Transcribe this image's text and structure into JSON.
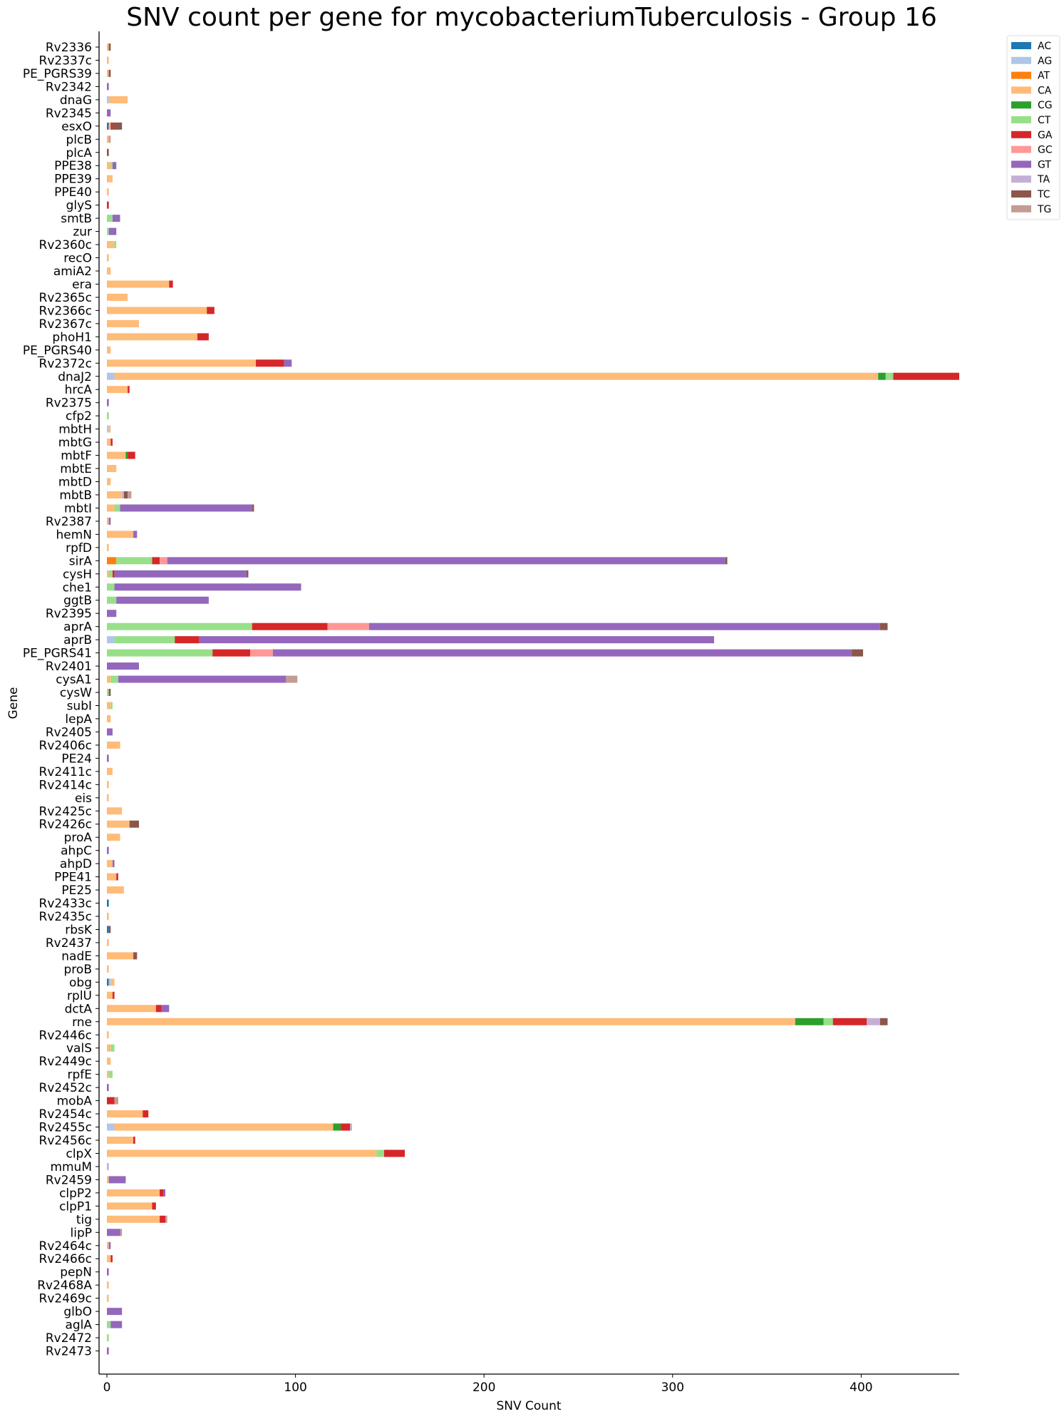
{
  "chart_data": {
    "type": "bar",
    "orientation": "horizontal",
    "stacked": true,
    "title": "SNV count per gene for mycobacteriumTuberculosis - Group 16",
    "xlabel": "SNV Count",
    "ylabel": "Gene",
    "xlim": [
      0,
      452
    ],
    "xticks": [
      0,
      100,
      200,
      300,
      400
    ],
    "grid": false,
    "legend_position": "top-right, outside plot",
    "series_names": [
      "AC",
      "AG",
      "AT",
      "CA",
      "CG",
      "CT",
      "GA",
      "GC",
      "GT",
      "TA",
      "TC",
      "TG"
    ],
    "series_colors": [
      "#1f77b4",
      "#aec7e8",
      "#ff7f0e",
      "#ffbb78",
      "#2ca02c",
      "#98df8a",
      "#d62728",
      "#ff9896",
      "#9467bd",
      "#c5b0d5",
      "#8c564b",
      "#c49c94"
    ],
    "genes": [
      {
        "name": "Rv2336",
        "v": {
          "CA": 1,
          "TC": 1
        }
      },
      {
        "name": "Rv2337c",
        "v": {
          "CA": 1
        }
      },
      {
        "name": "PE_PGRS39",
        "v": {
          "CA": 1,
          "TC": 1
        }
      },
      {
        "name": "Rv2342",
        "v": {
          "GT": 1
        }
      },
      {
        "name": "dnaG",
        "v": {
          "AG": 1,
          "CA": 10
        }
      },
      {
        "name": "Rv2345",
        "v": {
          "GT": 2
        }
      },
      {
        "name": "esxO",
        "v": {
          "AC": 1,
          "CA": 1,
          "GA": 1,
          "TC": 5
        }
      },
      {
        "name": "plcB",
        "v": {
          "CA": 1,
          "TG": 1
        }
      },
      {
        "name": "plcA",
        "v": {
          "TC": 1
        }
      },
      {
        "name": "PPE38",
        "v": {
          "CA": 2,
          "CT": 1,
          "GT": 2
        }
      },
      {
        "name": "PPE39",
        "v": {
          "CA": 3
        }
      },
      {
        "name": "PPE40",
        "v": {
          "CA": 1
        }
      },
      {
        "name": "glyS",
        "v": {
          "GA": 1
        }
      },
      {
        "name": "smtB",
        "v": {
          "CT": 3,
          "GT": 4
        }
      },
      {
        "name": "zur",
        "v": {
          "CT": 1,
          "GT": 4
        }
      },
      {
        "name": "Rv2360c",
        "v": {
          "CA": 4,
          "CT": 1
        }
      },
      {
        "name": "recO",
        "v": {
          "CA": 1
        }
      },
      {
        "name": "amiA2",
        "v": {
          "CA": 2
        }
      },
      {
        "name": "era",
        "v": {
          "CA": 33,
          "GA": 2
        }
      },
      {
        "name": "Rv2365c",
        "v": {
          "CA": 11
        }
      },
      {
        "name": "Rv2366c",
        "v": {
          "CA": 53,
          "GA": 4
        }
      },
      {
        "name": "Rv2367c",
        "v": {
          "CA": 17
        }
      },
      {
        "name": "phoH1",
        "v": {
          "CA": 48,
          "GA": 6
        }
      },
      {
        "name": "PE_PGRS40",
        "v": {
          "CA": 2
        }
      },
      {
        "name": "Rv2372c",
        "v": {
          "CA": 79,
          "GA": 15,
          "GT": 4
        }
      },
      {
        "name": "dnaJ2",
        "v": {
          "AG": 4,
          "CA": 405,
          "CG": 4,
          "CT": 4,
          "GA": 35
        }
      },
      {
        "name": "hrcA",
        "v": {
          "CA": 11,
          "GA": 1
        }
      },
      {
        "name": "Rv2375",
        "v": {
          "GT": 1
        }
      },
      {
        "name": "cfp2",
        "v": {
          "CT": 1
        }
      },
      {
        "name": "mbtH",
        "v": {
          "AG": 1,
          "CA": 1
        }
      },
      {
        "name": "mbtG",
        "v": {
          "CA": 2,
          "GA": 1
        }
      },
      {
        "name": "mbtF",
        "v": {
          "CA": 10,
          "CG": 1,
          "GA": 4
        }
      },
      {
        "name": "mbtE",
        "v": {
          "CA": 5
        }
      },
      {
        "name": "mbtD",
        "v": {
          "CA": 2
        }
      },
      {
        "name": "mbtB",
        "v": {
          "CA": 8,
          "TA": 1,
          "TC": 2,
          "TG": 2
        }
      },
      {
        "name": "mbtI",
        "v": {
          "CA": 4,
          "CT": 3,
          "GT": 70,
          "TC": 1
        }
      },
      {
        "name": "Rv2387",
        "v": {
          "CA": 1,
          "GT": 1
        }
      },
      {
        "name": "hemN",
        "v": {
          "CA": 14,
          "GT": 2
        }
      },
      {
        "name": "rpfD",
        "v": {
          "CA": 1
        }
      },
      {
        "name": "sirA",
        "v": {
          "AT": 5,
          "CT": 19,
          "GA": 4,
          "GC": 4,
          "GT": 296,
          "TC": 1
        }
      },
      {
        "name": "cysH",
        "v": {
          "CA": 1,
          "CT": 2,
          "GA": 1,
          "TC": 1,
          "GT": 70
        }
      },
      {
        "name": "che1",
        "v": {
          "CT": 4,
          "GT": 99
        }
      },
      {
        "name": "ggtB",
        "v": {
          "CT": 5,
          "GT": 49
        }
      },
      {
        "name": "Rv2395",
        "v": {
          "GT": 5
        }
      },
      {
        "name": "aprA",
        "v": {
          "CT": 77,
          "GA": 40,
          "GC": 22,
          "GT": 271,
          "TC": 4
        }
      },
      {
        "name": "aprB",
        "v": {
          "AG": 4,
          "CT": 32,
          "GA": 13,
          "GT": 273
        }
      },
      {
        "name": "PE_PGRS41",
        "v": {
          "CT": 56,
          "GA": 20,
          "GC": 12,
          "GT": 307,
          "TC": 6
        }
      },
      {
        "name": "Rv2401",
        "v": {
          "GT": 17
        }
      },
      {
        "name": "cysA1",
        "v": {
          "CA": 2,
          "TG": 6,
          "CT": 4,
          "GT": 89
        }
      },
      {
        "name": "cysW",
        "v": {
          "CT": 1,
          "TC": 1
        }
      },
      {
        "name": "subI",
        "v": {
          "CA": 2,
          "CT": 1
        }
      },
      {
        "name": "lepA",
        "v": {
          "CA": 2
        }
      },
      {
        "name": "Rv2405",
        "v": {
          "GT": 3
        }
      },
      {
        "name": "Rv2406c",
        "v": {
          "CA": 7
        }
      },
      {
        "name": "PE24",
        "v": {
          "GT": 1
        }
      },
      {
        "name": "Rv2411c",
        "v": {
          "CA": 3
        }
      },
      {
        "name": "Rv2414c",
        "v": {
          "CA": 1
        }
      },
      {
        "name": "eis",
        "v": {
          "CA": 1
        }
      },
      {
        "name": "Rv2425c",
        "v": {
          "CA": 8
        }
      },
      {
        "name": "Rv2426c",
        "v": {
          "CA": 12,
          "TC": 5
        }
      },
      {
        "name": "proA",
        "v": {
          "CA": 7
        }
      },
      {
        "name": "ahpC",
        "v": {
          "GT": 1
        }
      },
      {
        "name": "ahpD",
        "v": {
          "CA": 3,
          "GT": 1
        }
      },
      {
        "name": "PPE41",
        "v": {
          "CA": 5,
          "GA": 1
        }
      },
      {
        "name": "PE25",
        "v": {
          "CA": 9
        }
      },
      {
        "name": "Rv2433c",
        "v": {
          "AC": 1
        }
      },
      {
        "name": "Rv2435c",
        "v": {
          "CA": 1
        }
      },
      {
        "name": "rbsK",
        "v": {
          "AC": 1,
          "TC": 1
        }
      },
      {
        "name": "Rv2437",
        "v": {
          "CA": 1
        }
      },
      {
        "name": "nadE",
        "v": {
          "CA": 14,
          "TC": 2
        }
      },
      {
        "name": "proB",
        "v": {
          "CA": 1
        }
      },
      {
        "name": "obg",
        "v": {
          "AC": 1,
          "AG": 1,
          "CA": 2
        }
      },
      {
        "name": "rplU",
        "v": {
          "CA": 3,
          "GA": 1
        }
      },
      {
        "name": "dctA",
        "v": {
          "CA": 26,
          "GA": 3,
          "GT": 4
        }
      },
      {
        "name": "rne",
        "v": {
          "CA": 365,
          "CG": 15,
          "CT": 5,
          "GA": 18,
          "TA": 7,
          "TC": 4
        }
      },
      {
        "name": "Rv2446c",
        "v": {
          "CA": 1
        }
      },
      {
        "name": "valS",
        "v": {
          "CA": 2,
          "CT": 2
        }
      },
      {
        "name": "Rv2449c",
        "v": {
          "CA": 2
        }
      },
      {
        "name": "rpfE",
        "v": {
          "CA": 1,
          "CT": 2
        }
      },
      {
        "name": "Rv2452c",
        "v": {
          "GT": 1
        }
      },
      {
        "name": "mobA",
        "v": {
          "TG": 2,
          "GA": 4
        }
      },
      {
        "name": "Rv2454c",
        "v": {
          "CA": 19,
          "GA": 3
        }
      },
      {
        "name": "Rv2455c",
        "v": {
          "AG": 4,
          "CA": 116,
          "CG": 4,
          "GA": 5,
          "TA": 1
        }
      },
      {
        "name": "Rv2456c",
        "v": {
          "CA": 14,
          "GA": 1
        }
      },
      {
        "name": "clpX",
        "v": {
          "CA": 143,
          "CT": 4,
          "GA": 11
        }
      },
      {
        "name": "mmuM",
        "v": {
          "TA": 1
        }
      },
      {
        "name": "Rv2459",
        "v": {
          "CA": 1,
          "GT": 9
        }
      },
      {
        "name": "clpP2",
        "v": {
          "CA": 28,
          "GA": 2,
          "GT": 1
        }
      },
      {
        "name": "clpP1",
        "v": {
          "CA": 24,
          "GA": 2
        }
      },
      {
        "name": "tig",
        "v": {
          "CA": 28,
          "GA": 3,
          "TG": 1
        }
      },
      {
        "name": "lipP",
        "v": {
          "TG": 1,
          "GT": 7
        }
      },
      {
        "name": "Rv2464c",
        "v": {
          "CA": 1,
          "GT": 1
        }
      },
      {
        "name": "Rv2466c",
        "v": {
          "CA": 2,
          "GA": 1
        }
      },
      {
        "name": "pepN",
        "v": {
          "GT": 1
        }
      },
      {
        "name": "Rv2468A",
        "v": {
          "CA": 1
        }
      },
      {
        "name": "Rv2469c",
        "v": {
          "CA": 1
        }
      },
      {
        "name": "glbO",
        "v": {
          "GT": 8
        }
      },
      {
        "name": "aglA",
        "v": {
          "CT": 2,
          "GT": 6
        }
      },
      {
        "name": "Rv2472",
        "v": {
          "CT": 1
        }
      },
      {
        "name": "Rv2473",
        "v": {
          "GT": 1
        }
      }
    ]
  }
}
